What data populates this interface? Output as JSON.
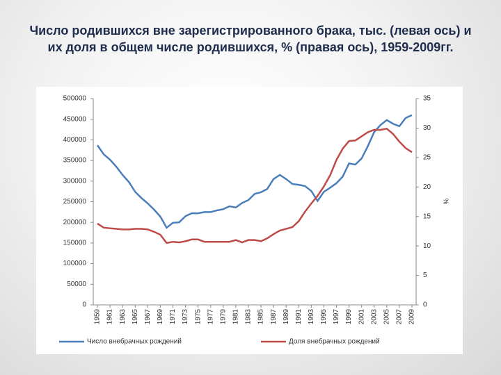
{
  "chart_data": {
    "type": "line",
    "title": "Число родившихся вне зарегистрированного брака, тыс. (левая ось) и их доля в общем числе родившихся, % (правая ось), 1959-2009гг.",
    "y2_label": "%",
    "x": [
      1959,
      1960,
      1961,
      1962,
      1963,
      1964,
      1965,
      1966,
      1967,
      1968,
      1969,
      1970,
      1971,
      1972,
      1973,
      1974,
      1975,
      1976,
      1977,
      1978,
      1979,
      1980,
      1981,
      1982,
      1983,
      1984,
      1985,
      1986,
      1987,
      1988,
      1989,
      1990,
      1991,
      1992,
      1993,
      1994,
      1995,
      1996,
      1997,
      1998,
      1999,
      2000,
      2001,
      2002,
      2003,
      2004,
      2005,
      2006,
      2007,
      2008,
      2009
    ],
    "xlim": [
      1959,
      2009
    ],
    "xticks": [
      1959,
      1961,
      1963,
      1965,
      1967,
      1969,
      1971,
      1973,
      1975,
      1977,
      1979,
      1981,
      1983,
      1985,
      1987,
      1989,
      1991,
      1993,
      1995,
      1997,
      1999,
      2001,
      2003,
      2005,
      2007,
      2009
    ],
    "ylim": [
      0,
      500000
    ],
    "yticks": [
      0,
      50000,
      100000,
      150000,
      200000,
      250000,
      300000,
      350000,
      400000,
      450000,
      500000
    ],
    "y2lim": [
      0,
      35
    ],
    "y2ticks": [
      0,
      5,
      10,
      15,
      20,
      25,
      30,
      35
    ],
    "legend": "bottom",
    "series": [
      {
        "name": "Число внебрачных рождений",
        "color": "#4a7ebb",
        "values": [
          387000,
          365000,
          352000,
          335000,
          315000,
          298000,
          274000,
          259000,
          246000,
          231000,
          214000,
          187000,
          199000,
          200000,
          215000,
          222000,
          222000,
          225000,
          225000,
          229000,
          232000,
          239000,
          236000,
          247000,
          254000,
          269000,
          273000,
          281000,
          305000,
          315000,
          305000,
          293000,
          291000,
          288000,
          276000,
          252000,
          274000,
          284000,
          295000,
          311000,
          343000,
          340000,
          355000,
          385000,
          419000,
          436000,
          448000,
          439000,
          433000,
          453000,
          460000
        ]
      },
      {
        "name": "Доля внебрачных рождений",
        "color": "#be4b48",
        "axis": "y2",
        "values": [
          13.8,
          13.1,
          13.0,
          12.9,
          12.8,
          12.8,
          12.9,
          12.9,
          12.8,
          12.4,
          11.9,
          10.5,
          10.7,
          10.6,
          10.8,
          11.1,
          11.1,
          10.7,
          10.7,
          10.7,
          10.7,
          10.7,
          11.0,
          10.6,
          11.0,
          11.0,
          10.8,
          11.3,
          12.0,
          12.6,
          12.9,
          13.2,
          14.2,
          15.8,
          17.2,
          18.5,
          20.1,
          22.0,
          24.6,
          26.5,
          27.8,
          27.9,
          28.6,
          29.3,
          29.7,
          29.7,
          29.9,
          29.0,
          27.7,
          26.6,
          25.9
        ]
      }
    ]
  }
}
